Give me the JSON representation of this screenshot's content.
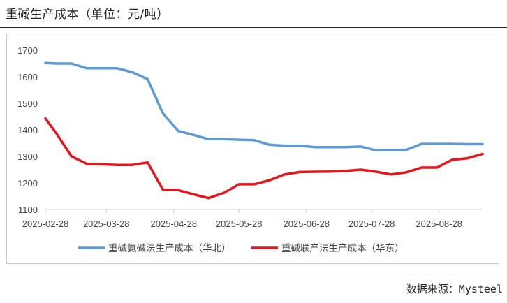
{
  "title": "重碱生产成本（单位：元/吨）",
  "source": "数据来源：Mysteel",
  "chart_data": {
    "type": "line",
    "title": "重碱生产成本（单位：元/吨）",
    "xlabel": "",
    "ylabel": "",
    "ylim": [
      1100,
      1700
    ],
    "yticks": [
      1100,
      1200,
      1300,
      1400,
      1500,
      1600,
      1700
    ],
    "xtick_labels": [
      "2025-02-28",
      "2025-03-28",
      "2025-04-28",
      "2025-05-28",
      "2025-06-28",
      "2025-07-28",
      "2025-08-28"
    ],
    "x_start": "2025-02-28",
    "grid": false,
    "legend": "bottom",
    "x": [
      "2025-02-28",
      "2025-03-05",
      "2025-03-12",
      "2025-03-19",
      "2025-03-26",
      "2025-04-02",
      "2025-04-09",
      "2025-04-16",
      "2025-04-23",
      "2025-04-30",
      "2025-05-07",
      "2025-05-14",
      "2025-05-21",
      "2025-05-28",
      "2025-06-04",
      "2025-06-11",
      "2025-06-18",
      "2025-06-25",
      "2025-07-02",
      "2025-07-09",
      "2025-07-16",
      "2025-07-23",
      "2025-07-30",
      "2025-08-06",
      "2025-08-13",
      "2025-08-20",
      "2025-08-27",
      "2025-09-03",
      "2025-09-10",
      "2025-09-17"
    ],
    "series": [
      {
        "name": "重碱氨碱法生产成本（华北）",
        "color": "#5b9bd5",
        "values": [
          1652,
          1650,
          1650,
          1632,
          1632,
          1632,
          1617,
          1591,
          1462,
          1396,
          1381,
          1365,
          1365,
          1363,
          1361,
          1344,
          1340,
          1340,
          1335,
          1335,
          1335,
          1337,
          1323,
          1323,
          1325,
          1347,
          1347,
          1347,
          1346,
          1346
        ]
      },
      {
        "name": "重碱联产法生产成本（华东）",
        "color": "#e8141c",
        "values": [
          1443,
          1387,
          1300,
          1272,
          1270,
          1268,
          1268,
          1277,
          1175,
          1173,
          1157,
          1143,
          1162,
          1195,
          1195,
          1210,
          1232,
          1241,
          1242,
          1243,
          1245,
          1250,
          1242,
          1232,
          1240,
          1258,
          1258,
          1287,
          1293,
          1309
        ]
      }
    ]
  }
}
